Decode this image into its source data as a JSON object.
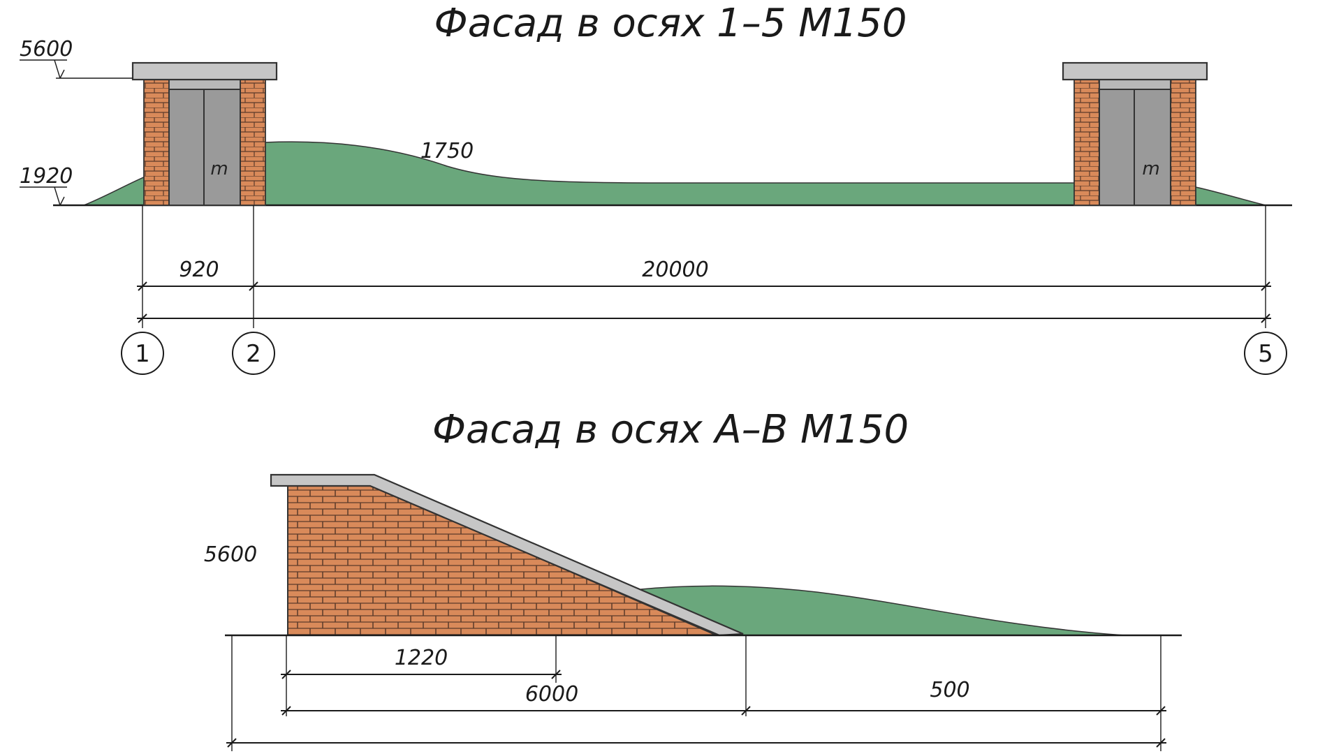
{
  "colors": {
    "brick": "#d98a5a",
    "brick_mortar": "#5a3a2a",
    "grass": "#6aa77c",
    "slab": "#c6c6c6",
    "door": "#9a9a9a",
    "line": "#1a1a1a"
  },
  "facade_1_5": {
    "title": "Фасад в осях 1–5 М150",
    "level_top": "5600",
    "level_low": "1920",
    "mound_height": "1750",
    "door_mark": "m",
    "dim_1_2": "920",
    "dim_2_5": "20000",
    "axes": [
      "1",
      "2",
      "5"
    ]
  },
  "facade_a_b": {
    "title": "Фасад в осях А–В М150",
    "height": "5600",
    "dim_inner": "1220",
    "dim_main": "6000",
    "dim_right": "500"
  }
}
